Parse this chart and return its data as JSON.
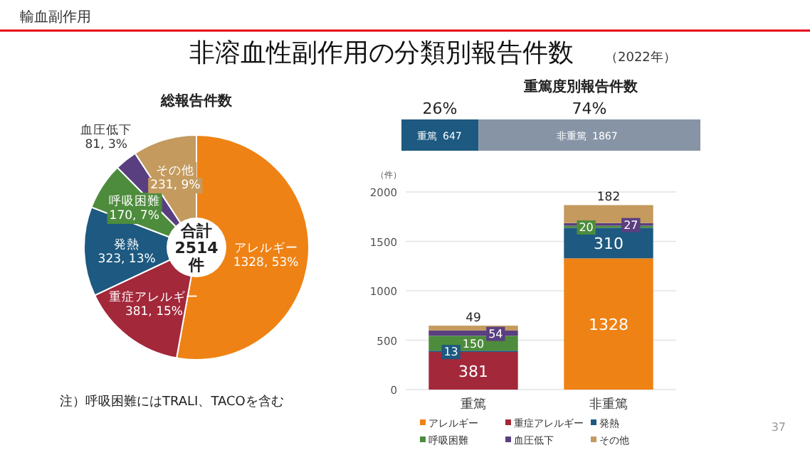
{
  "chart_data": [
    {
      "type": "donut",
      "title": "総報告件数",
      "categories": [
        "アレルギー",
        "重症アレルギー",
        "発熱",
        "呼吸困難",
        "血圧低下",
        "その他"
      ],
      "values": [
        1328,
        381,
        323,
        170,
        81,
        231
      ],
      "colors": [
        "#ef8214",
        "#a3283a",
        "#1d5980",
        "#4d8c3c",
        "#5a3f80",
        "#c49a5e"
      ],
      "value_labels": [
        "1328, 53%",
        "381, 15%",
        "323, 13%",
        "170, 7%",
        "81, 3%",
        "231, 9%"
      ],
      "annotations": [
        "合計",
        "2514",
        "件"
      ]
    },
    {
      "type": "bar",
      "orientation": "horizontal",
      "stacked": true,
      "title": "重篤度別報告件数",
      "categories": [
        null
      ],
      "series": [
        {
          "name": "重篤",
          "color": "#1d5980",
          "values": [
            647
          ],
          "value_labels": [
            "647"
          ]
        },
        {
          "name": "非重篤",
          "color": "#8794a6",
          "values": [
            1867
          ],
          "value_labels": [
            "1867"
          ]
        }
      ],
      "annotations": [
        "26%",
        "74%"
      ]
    },
    {
      "type": "bar",
      "stacked": true,
      "categories": [
        "重篤",
        "非重篤"
      ],
      "series": [
        {
          "name": "アレルギー",
          "color": "#ef8214",
          "values": [
            0,
            1328
          ],
          "value_labels": [
            null,
            "1328"
          ]
        },
        {
          "name": "重症アレルギー",
          "color": "#a3283a",
          "values": [
            381,
            0
          ],
          "value_labels": [
            "381",
            null
          ]
        },
        {
          "name": "発熱",
          "color": "#1d5980",
          "values": [
            13,
            310
          ],
          "value_labels": [
            "13",
            "310"
          ]
        },
        {
          "name": "呼吸困難",
          "color": "#4d8c3c",
          "values": [
            150,
            20
          ],
          "value_labels": [
            "150",
            "20"
          ]
        },
        {
          "name": "血圧低下",
          "color": "#5a3f80",
          "values": [
            54,
            27
          ],
          "value_labels": [
            "54",
            "27"
          ]
        },
        {
          "name": "その他",
          "color": "#c49a5e",
          "values": [
            49,
            182
          ],
          "value_labels": [
            "49",
            "182"
          ]
        }
      ],
      "ylim": [
        0,
        2000
      ],
      "yticks": [
        0,
        500,
        1000,
        1500,
        2000
      ],
      "ylabel": "（件）",
      "grid": "y",
      "legend": "bottom"
    },
    {
      "type": "other",
      "title": "非溶血性副作用の分類別報告件数",
      "subtitle": "（2022年）",
      "annotations": [
        "輸血副作用",
        "注）呼吸困難にはTRALI、TACOを含む",
        "37"
      ]
    }
  ]
}
